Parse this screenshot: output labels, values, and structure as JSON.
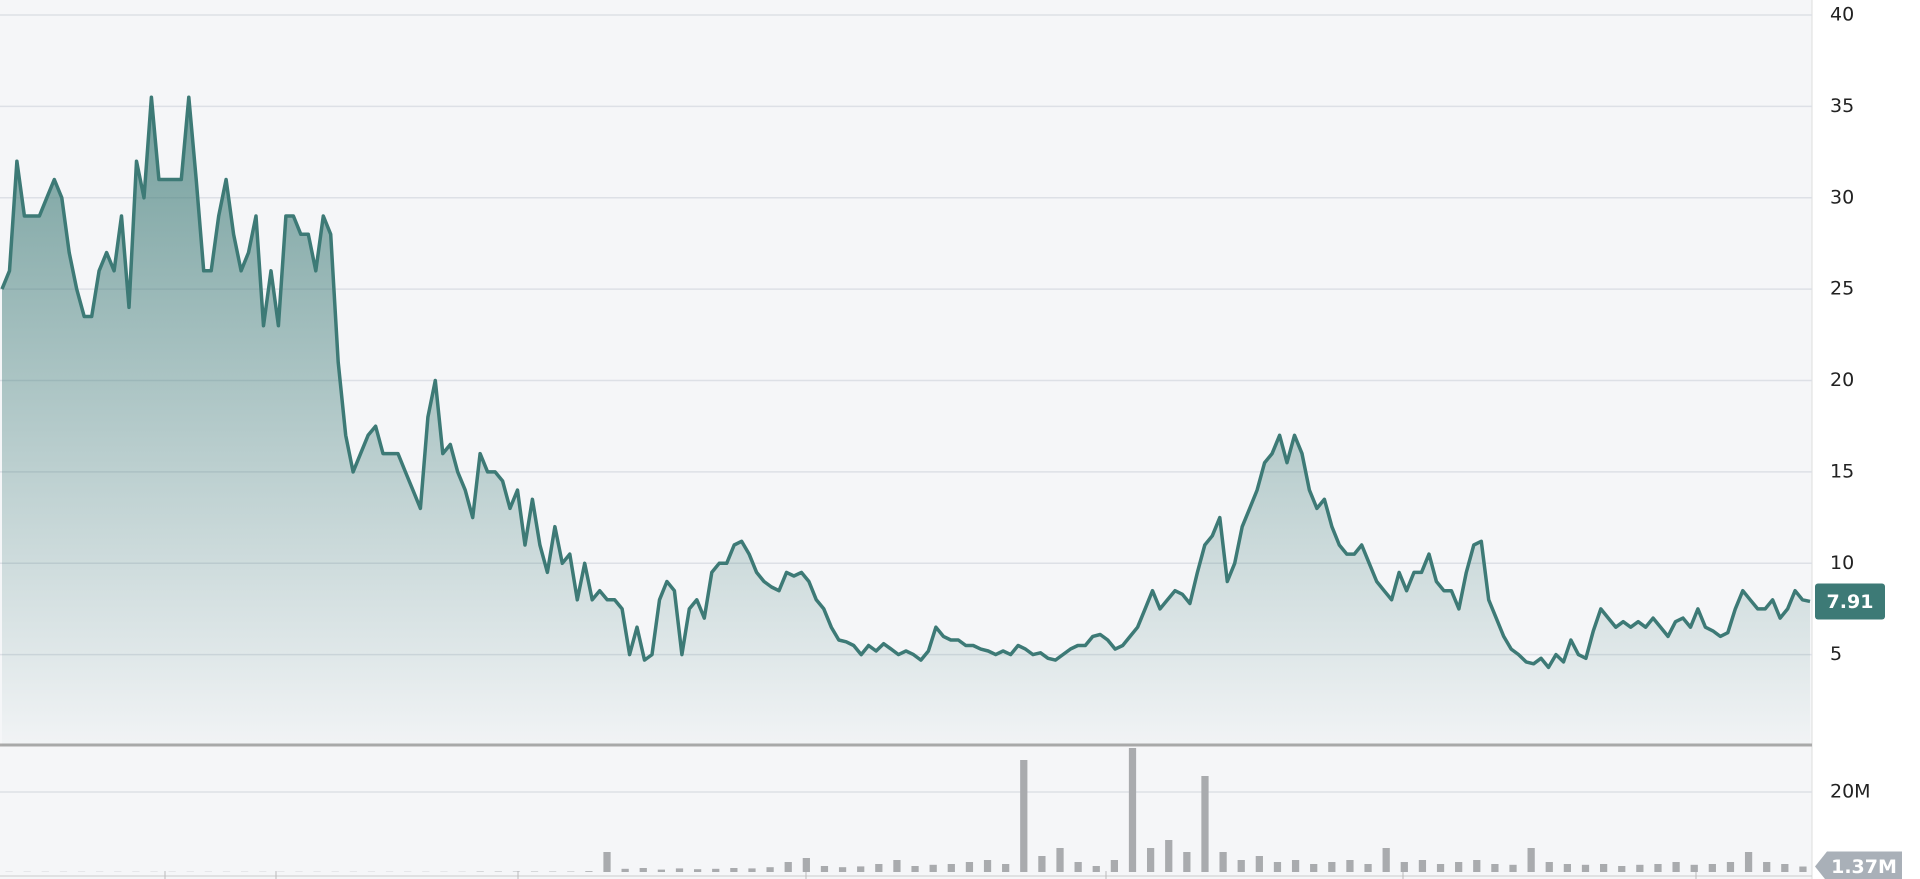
{
  "chart_data": [
    {
      "type": "area",
      "color": "#3d7a76",
      "values": [
        25,
        26,
        32,
        29,
        29,
        29,
        30,
        31,
        30,
        27,
        25,
        23.5,
        23.5,
        26,
        27,
        26,
        29,
        24,
        32,
        30,
        35.5,
        31,
        31,
        31,
        31,
        35.5,
        31,
        26,
        26,
        29,
        31,
        28,
        26,
        27,
        29,
        23,
        26,
        23,
        29,
        29,
        28,
        28,
        26,
        29,
        28,
        21,
        17,
        15,
        16,
        17,
        17.5,
        16,
        16,
        16,
        15,
        14,
        13,
        18,
        20,
        16,
        16.5,
        15,
        14,
        12.5,
        16,
        15,
        15,
        14.5,
        13,
        14,
        11,
        13.5,
        11,
        9.5,
        12,
        10,
        10.5,
        8,
        10,
        8,
        8.5,
        8,
        8,
        7.5,
        5,
        6.5,
        4.7,
        5,
        8,
        9,
        8.5,
        5,
        7.5,
        8,
        7,
        9.5,
        10,
        10,
        11,
        11.2,
        10.5,
        9.5,
        9,
        8.7,
        8.5,
        9.5,
        9.3,
        9.5,
        9,
        8,
        7.5,
        6.5,
        5.8,
        5.7,
        5.5,
        5,
        5.5,
        5.2,
        5.6,
        5.3,
        5,
        5.2,
        5,
        4.7,
        5.2,
        6.5,
        6,
        5.8,
        5.8,
        5.5,
        5.5,
        5.3,
        5.2,
        5,
        5.2,
        5,
        5.5,
        5.3,
        5,
        5.1,
        4.8,
        4.7,
        5,
        5.3,
        5.5,
        5.5,
        6,
        6.1,
        5.8,
        5.3,
        5.5,
        6,
        6.5,
        7.5,
        8.5,
        7.5,
        8,
        8.5,
        8.3,
        7.8,
        9.5,
        11,
        11.5,
        12.5,
        9,
        10,
        12,
        13,
        14,
        15.5,
        16,
        17,
        15.5,
        17,
        16,
        14,
        13,
        13.5,
        12,
        11,
        10.5,
        10.5,
        11,
        10,
        9,
        8.5,
        8,
        9.5,
        8.5,
        9.5,
        9.5,
        10.5,
        9,
        8.5,
        8.5,
        7.5,
        9.5,
        11,
        11.2,
        8,
        7,
        6,
        5.3,
        5,
        4.6,
        4.5,
        4.8,
        4.3,
        5,
        4.6,
        5.8,
        5,
        4.8,
        6.3,
        7.5,
        7,
        6.5,
        6.8,
        6.5,
        6.8,
        6.5,
        7,
        6.5,
        6,
        6.8,
        7,
        6.5,
        7.5,
        6.5,
        6.3,
        6,
        6.2,
        7.5,
        8.5,
        8,
        7.5,
        7.5,
        8,
        7,
        7.5,
        8.5,
        8,
        7.91
      ],
      "ylim": [
        0,
        40
      ],
      "yticks": [
        5,
        10,
        15,
        20,
        25,
        30,
        35,
        40
      ],
      "grid": true
    },
    {
      "type": "bar",
      "color": "#a9abae",
      "values": [
        50000,
        50000,
        50000,
        50000,
        50000,
        50000,
        50000,
        50000,
        50000,
        50000,
        50000,
        50000,
        50000,
        50000,
        50000,
        50000,
        50000,
        50000,
        50000,
        50000,
        50000,
        50000,
        50000,
        50000,
        50000,
        50000,
        100000,
        100000,
        100000,
        100000,
        100000,
        100000,
        200000,
        5000000,
        800000,
        1000000,
        600000,
        900000,
        700000,
        800000,
        1000000,
        900000,
        1200000,
        2500000,
        3500000,
        1500000,
        1200000,
        1400000,
        2000000,
        3000000,
        1500000,
        1800000,
        2000000,
        2500000,
        3000000,
        2000000,
        28000000,
        4000000,
        6000000,
        2500000,
        1500000,
        3000000,
        31000000,
        6000000,
        8000000,
        5000000,
        24000000,
        5000000,
        3000000,
        4000000,
        2500000,
        3000000,
        2000000,
        2500000,
        3000000,
        2000000,
        6000000,
        2500000,
        3000000,
        2000000,
        2500000,
        3000000,
        2000000,
        1800000,
        6000000,
        2500000,
        2000000,
        1800000,
        2000000,
        1500000,
        1800000,
        2000000,
        2500000,
        1800000,
        2000000,
        2500000,
        5000000,
        2500000,
        2000000,
        1370000
      ],
      "ylim": [
        0,
        30000000
      ],
      "yticks": [
        {
          "value": 20000000,
          "label": "20M"
        }
      ],
      "current": {
        "value": 1370000,
        "label": "1.37M"
      },
      "grid": true
    }
  ]
}
